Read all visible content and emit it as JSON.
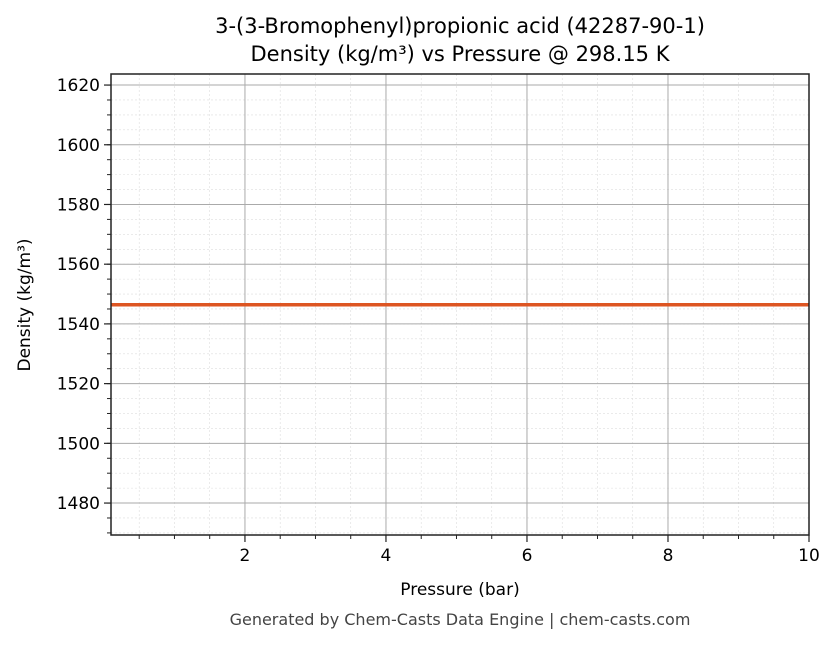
{
  "chart_data": {
    "type": "line",
    "title": "3-(3-Bromophenyl)propionic acid (42287-90-1)",
    "subtitle": "Density (kg/m³) vs Pressure @ 298.15 K",
    "xlabel": "Pressure (bar)",
    "ylabel": "Density (kg/m³)",
    "xlim": [
      0.1,
      10
    ],
    "ylim": [
      1469.3,
      1623.7
    ],
    "x_ticks": [
      2,
      4,
      6,
      8,
      10
    ],
    "y_ticks": [
      1480,
      1500,
      1520,
      1540,
      1560,
      1580,
      1600,
      1620
    ],
    "grid": true,
    "series": [
      {
        "x": [
          0.1,
          10
        ],
        "y": [
          1546.4,
          1546.4
        ],
        "color": "#dd5522"
      }
    ],
    "footer": "Generated by Chem-Casts Data Engine | chem-casts.com"
  }
}
